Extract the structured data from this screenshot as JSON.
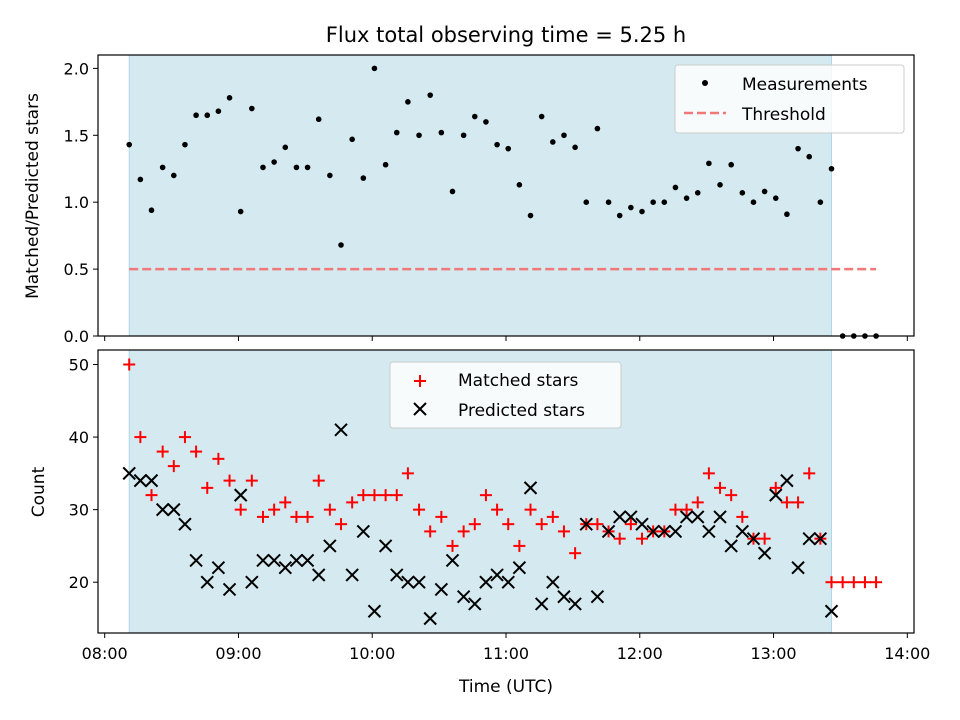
{
  "chart_data": {
    "type": "scatter",
    "title": "Flux total observing time = 5.25 h",
    "xlabel": "Time (UTC)",
    "x_ticks": [
      "08:00",
      "09:00",
      "10:00",
      "11:00",
      "12:00",
      "13:00",
      "14:00"
    ],
    "x_range": [
      "07:57",
      "14:03"
    ],
    "observing_window": {
      "start": "08:11",
      "end": "13:26",
      "color": "#d4eaf0"
    },
    "panels": [
      {
        "ylabel": "Matched/Predicted stars",
        "ylim": [
          0,
          2.1
        ],
        "y_ticks": [
          "0.0",
          "0.5",
          "1.0",
          "1.5",
          "2.0"
        ],
        "legend_position": "top-right",
        "series": [
          {
            "name": "Measurements",
            "marker": "dot",
            "color": "#000000",
            "x": [
              "08:11",
              "08:16",
              "08:21",
              "08:26",
              "08:31",
              "08:36",
              "08:41",
              "08:46",
              "08:51",
              "08:56",
              "09:01",
              "09:06",
              "09:11",
              "09:16",
              "09:21",
              "09:26",
              "09:31",
              "09:36",
              "09:41",
              "09:46",
              "09:51",
              "09:56",
              "10:01",
              "10:06",
              "10:11",
              "10:16",
              "10:21",
              "10:26",
              "10:31",
              "10:36",
              "10:41",
              "10:46",
              "10:51",
              "10:56",
              "11:01",
              "11:06",
              "11:11",
              "11:16",
              "11:21",
              "11:26",
              "11:31",
              "11:36",
              "11:41",
              "11:46",
              "11:51",
              "11:56",
              "12:01",
              "12:06",
              "12:11",
              "12:16",
              "12:21",
              "12:26",
              "12:31",
              "12:36",
              "12:41",
              "12:46",
              "12:51",
              "12:56",
              "13:01",
              "13:06",
              "13:11",
              "13:16",
              "13:21",
              "13:26",
              "13:31",
              "13:36",
              "13:41",
              "13:46"
            ],
            "values": [
              1.43,
              1.17,
              0.94,
              1.26,
              1.2,
              1.43,
              1.65,
              1.65,
              1.68,
              1.78,
              0.93,
              1.7,
              1.26,
              1.3,
              1.41,
              1.26,
              1.26,
              1.62,
              1.2,
              0.68,
              1.47,
              1.18,
              2.0,
              1.28,
              1.52,
              1.75,
              1.5,
              1.8,
              1.52,
              1.08,
              1.5,
              1.64,
              1.6,
              1.43,
              1.4,
              1.13,
              0.9,
              1.64,
              1.45,
              1.5,
              1.41,
              1.0,
              1.55,
              1.0,
              0.9,
              0.96,
              0.93,
              1.0,
              1.0,
              1.11,
              1.03,
              1.07,
              1.29,
              1.13,
              1.28,
              1.07,
              1.0,
              1.08,
              1.03,
              0.91,
              1.4,
              1.34,
              1.0,
              1.25,
              0.0,
              0.0,
              0.0,
              0.0
            ]
          },
          {
            "name": "Threshold",
            "marker": "dashed-line",
            "color": "#f07878",
            "x": [
              "08:11",
              "13:46"
            ],
            "values": [
              0.5,
              0.5
            ]
          }
        ]
      },
      {
        "ylabel": "Count",
        "ylim": [
          13,
          52
        ],
        "y_ticks": [
          "20",
          "30",
          "40",
          "50"
        ],
        "legend_position": "top-center",
        "series": [
          {
            "name": "Matched stars",
            "marker": "plus",
            "color": "#ff0000",
            "x": [
              "08:11",
              "08:16",
              "08:21",
              "08:26",
              "08:31",
              "08:36",
              "08:41",
              "08:46",
              "08:51",
              "08:56",
              "09:01",
              "09:06",
              "09:11",
              "09:16",
              "09:21",
              "09:26",
              "09:31",
              "09:36",
              "09:41",
              "09:46",
              "09:51",
              "09:56",
              "10:01",
              "10:06",
              "10:11",
              "10:16",
              "10:21",
              "10:26",
              "10:31",
              "10:36",
              "10:41",
              "10:46",
              "10:51",
              "10:56",
              "11:01",
              "11:06",
              "11:11",
              "11:16",
              "11:21",
              "11:26",
              "11:31",
              "11:36",
              "11:41",
              "11:46",
              "11:51",
              "11:56",
              "12:01",
              "12:06",
              "12:11",
              "12:16",
              "12:21",
              "12:26",
              "12:31",
              "12:36",
              "12:41",
              "12:46",
              "12:51",
              "12:56",
              "13:01",
              "13:06",
              "13:11",
              "13:16",
              "13:21",
              "13:26",
              "13:31",
              "13:36",
              "13:41",
              "13:46"
            ],
            "values": [
              50,
              40,
              32,
              38,
              36,
              40,
              38,
              33,
              37,
              34,
              30,
              34,
              29,
              30,
              31,
              29,
              29,
              34,
              30,
              28,
              31,
              32,
              32,
              32,
              32,
              35,
              30,
              27,
              29,
              25,
              27,
              28,
              32,
              30,
              28,
              25,
              30,
              28,
              29,
              27,
              24,
              28,
              28,
              27,
              26,
              28,
              26,
              27,
              27,
              30,
              30,
              31,
              35,
              33,
              32,
              29,
              26,
              26,
              33,
              31,
              31,
              35,
              26,
              20,
              20,
              20,
              20,
              20
            ]
          },
          {
            "name": "Predicted stars",
            "marker": "x",
            "color": "#000000",
            "x": [
              "08:11",
              "08:16",
              "08:21",
              "08:26",
              "08:31",
              "08:36",
              "08:41",
              "08:46",
              "08:51",
              "08:56",
              "09:01",
              "09:06",
              "09:11",
              "09:16",
              "09:21",
              "09:26",
              "09:31",
              "09:36",
              "09:41",
              "09:46",
              "09:51",
              "09:56",
              "10:01",
              "10:06",
              "10:11",
              "10:16",
              "10:21",
              "10:26",
              "10:31",
              "10:36",
              "10:41",
              "10:46",
              "10:51",
              "10:56",
              "11:01",
              "11:06",
              "11:11",
              "11:16",
              "11:21",
              "11:26",
              "11:31",
              "11:36",
              "11:41",
              "11:46",
              "11:51",
              "11:56",
              "12:01",
              "12:06",
              "12:11",
              "12:16",
              "12:21",
              "12:26",
              "12:31",
              "12:36",
              "12:41",
              "12:46",
              "12:51",
              "12:56",
              "13:01",
              "13:06",
              "13:11",
              "13:16",
              "13:21",
              "13:26"
            ],
            "values": [
              35,
              34,
              34,
              30,
              30,
              28,
              23,
              20,
              22,
              19,
              32,
              20,
              23,
              23,
              22,
              23,
              23,
              21,
              25,
              41,
              21,
              27,
              16,
              25,
              21,
              20,
              20,
              15,
              19,
              23,
              18,
              17,
              20,
              21,
              20,
              22,
              33,
              17,
              20,
              18,
              17,
              28,
              18,
              27,
              29,
              29,
              28,
              27,
              27,
              27,
              29,
              29,
              27,
              29,
              25,
              27,
              26,
              24,
              32,
              34,
              22,
              26,
              26,
              16
            ]
          }
        ]
      }
    ]
  }
}
